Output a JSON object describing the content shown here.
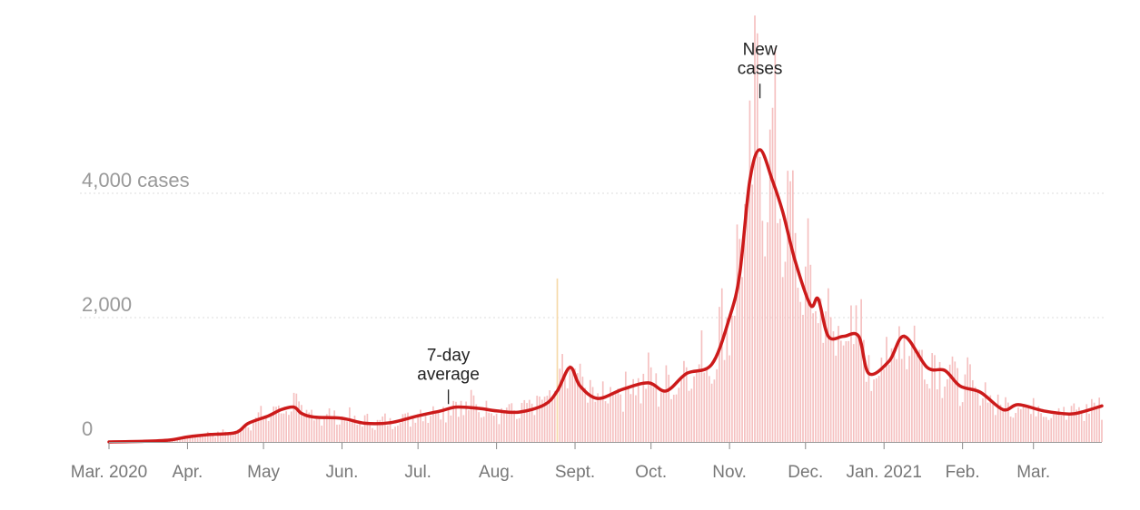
{
  "chart_data": {
    "type": "bar",
    "x_range": [
      "2020-03-01",
      "2021-03-28"
    ],
    "ylim": [
      0,
      5500
    ],
    "y_ticks": [
      {
        "value": 0,
        "label": "0"
      },
      {
        "value": 2000,
        "label": "2,000"
      },
      {
        "value": 4000,
        "label": "4,000 cases"
      }
    ],
    "x_ticks": [
      {
        "date": "2020-03-01",
        "label": "Mar. 2020"
      },
      {
        "date": "2020-04-01",
        "label": "Apr."
      },
      {
        "date": "2020-05-01",
        "label": "May"
      },
      {
        "date": "2020-06-01",
        "label": "Jun."
      },
      {
        "date": "2020-07-01",
        "label": "Jul."
      },
      {
        "date": "2020-08-01",
        "label": "Aug."
      },
      {
        "date": "2020-09-01",
        "label": "Sept."
      },
      {
        "date": "2020-10-01",
        "label": "Oct."
      },
      {
        "date": "2020-11-01",
        "label": "Nov."
      },
      {
        "date": "2020-12-01",
        "label": "Dec."
      },
      {
        "date": "2021-01-01",
        "label": "Jan. 2021"
      },
      {
        "date": "2021-02-01",
        "label": "Feb."
      },
      {
        "date": "2021-03-01",
        "label": "Mar."
      }
    ],
    "grid": true,
    "legend": "none",
    "annotations": [
      {
        "text": [
          "7-day",
          "average"
        ],
        "date": "2020-07-13",
        "value": 580
      },
      {
        "text": [
          "New",
          "cases"
        ],
        "date": "2020-11-13",
        "value": 5500
      }
    ],
    "highlight_bar": {
      "date": "2020-08-25",
      "value": 2630,
      "color": "#f6d9a8"
    },
    "series": [
      {
        "kind": "daily_bars",
        "color": "#f4b9b9",
        "average_points": [
          [
            "2020-03-01",
            0
          ],
          [
            "2020-03-15",
            10
          ],
          [
            "2020-03-25",
            30
          ],
          [
            "2020-04-01",
            80
          ],
          [
            "2020-04-10",
            120
          ],
          [
            "2020-04-20",
            150
          ],
          [
            "2020-04-25",
            300
          ],
          [
            "2020-05-03",
            420
          ],
          [
            "2020-05-08",
            520
          ],
          [
            "2020-05-13",
            560
          ],
          [
            "2020-05-16",
            460
          ],
          [
            "2020-05-21",
            400
          ],
          [
            "2020-06-01",
            380
          ],
          [
            "2020-06-10",
            300
          ],
          [
            "2020-06-20",
            310
          ],
          [
            "2020-07-01",
            420
          ],
          [
            "2020-07-10",
            500
          ],
          [
            "2020-07-16",
            560
          ],
          [
            "2020-07-25",
            540
          ],
          [
            "2020-08-01",
            500
          ],
          [
            "2020-08-10",
            480
          ],
          [
            "2020-08-20",
            600
          ],
          [
            "2020-08-25",
            820
          ],
          [
            "2020-08-30",
            1200
          ],
          [
            "2020-09-03",
            900
          ],
          [
            "2020-09-10",
            700
          ],
          [
            "2020-09-20",
            850
          ],
          [
            "2020-09-30",
            950
          ],
          [
            "2020-10-07",
            820
          ],
          [
            "2020-10-15",
            1100
          ],
          [
            "2020-10-25",
            1250
          ],
          [
            "2020-11-01",
            2000
          ],
          [
            "2020-11-05",
            2700
          ],
          [
            "2020-11-09",
            4200
          ],
          [
            "2020-11-13",
            4700
          ],
          [
            "2020-11-18",
            4200
          ],
          [
            "2020-11-22",
            3700
          ],
          [
            "2020-11-27",
            2900
          ],
          [
            "2020-12-03",
            2200
          ],
          [
            "2020-12-06",
            2300
          ],
          [
            "2020-12-10",
            1700
          ],
          [
            "2020-12-16",
            1700
          ],
          [
            "2020-12-22",
            1700
          ],
          [
            "2020-12-26",
            1100
          ],
          [
            "2021-01-03",
            1300
          ],
          [
            "2021-01-09",
            1700
          ],
          [
            "2021-01-18",
            1200
          ],
          [
            "2021-01-25",
            1150
          ],
          [
            "2021-01-31",
            900
          ],
          [
            "2021-02-08",
            800
          ],
          [
            "2021-02-17",
            520
          ],
          [
            "2021-02-23",
            600
          ],
          [
            "2021-03-05",
            500
          ],
          [
            "2021-03-15",
            450
          ],
          [
            "2021-03-20",
            480
          ],
          [
            "2021-03-28",
            580
          ]
        ]
      },
      {
        "kind": "seven_day_average",
        "color": "#cc1a1a",
        "points": [
          [
            "2020-03-01",
            0
          ],
          [
            "2020-03-15",
            10
          ],
          [
            "2020-03-25",
            30
          ],
          [
            "2020-04-01",
            80
          ],
          [
            "2020-04-10",
            120
          ],
          [
            "2020-04-20",
            150
          ],
          [
            "2020-04-25",
            300
          ],
          [
            "2020-05-03",
            420
          ],
          [
            "2020-05-08",
            520
          ],
          [
            "2020-05-13",
            560
          ],
          [
            "2020-05-16",
            460
          ],
          [
            "2020-05-21",
            400
          ],
          [
            "2020-06-01",
            380
          ],
          [
            "2020-06-10",
            300
          ],
          [
            "2020-06-20",
            310
          ],
          [
            "2020-07-01",
            420
          ],
          [
            "2020-07-10",
            500
          ],
          [
            "2020-07-16",
            560
          ],
          [
            "2020-07-25",
            540
          ],
          [
            "2020-08-01",
            500
          ],
          [
            "2020-08-10",
            480
          ],
          [
            "2020-08-20",
            600
          ],
          [
            "2020-08-25",
            820
          ],
          [
            "2020-08-30",
            1200
          ],
          [
            "2020-09-03",
            900
          ],
          [
            "2020-09-10",
            700
          ],
          [
            "2020-09-20",
            850
          ],
          [
            "2020-09-30",
            950
          ],
          [
            "2020-10-07",
            820
          ],
          [
            "2020-10-15",
            1100
          ],
          [
            "2020-10-25",
            1250
          ],
          [
            "2020-11-01",
            2000
          ],
          [
            "2020-11-05",
            2700
          ],
          [
            "2020-11-09",
            4200
          ],
          [
            "2020-11-13",
            4700
          ],
          [
            "2020-11-18",
            4200
          ],
          [
            "2020-11-22",
            3700
          ],
          [
            "2020-11-27",
            2900
          ],
          [
            "2020-12-03",
            2200
          ],
          [
            "2020-12-06",
            2300
          ],
          [
            "2020-12-10",
            1700
          ],
          [
            "2020-12-16",
            1700
          ],
          [
            "2020-12-22",
            1700
          ],
          [
            "2020-12-26",
            1100
          ],
          [
            "2021-01-03",
            1300
          ],
          [
            "2021-01-09",
            1700
          ],
          [
            "2021-01-18",
            1200
          ],
          [
            "2021-01-25",
            1150
          ],
          [
            "2021-01-31",
            900
          ],
          [
            "2021-02-08",
            800
          ],
          [
            "2021-02-17",
            520
          ],
          [
            "2021-02-23",
            600
          ],
          [
            "2021-03-05",
            500
          ],
          [
            "2021-03-15",
            450
          ],
          [
            "2021-03-20",
            480
          ],
          [
            "2021-03-28",
            580
          ]
        ]
      }
    ]
  }
}
